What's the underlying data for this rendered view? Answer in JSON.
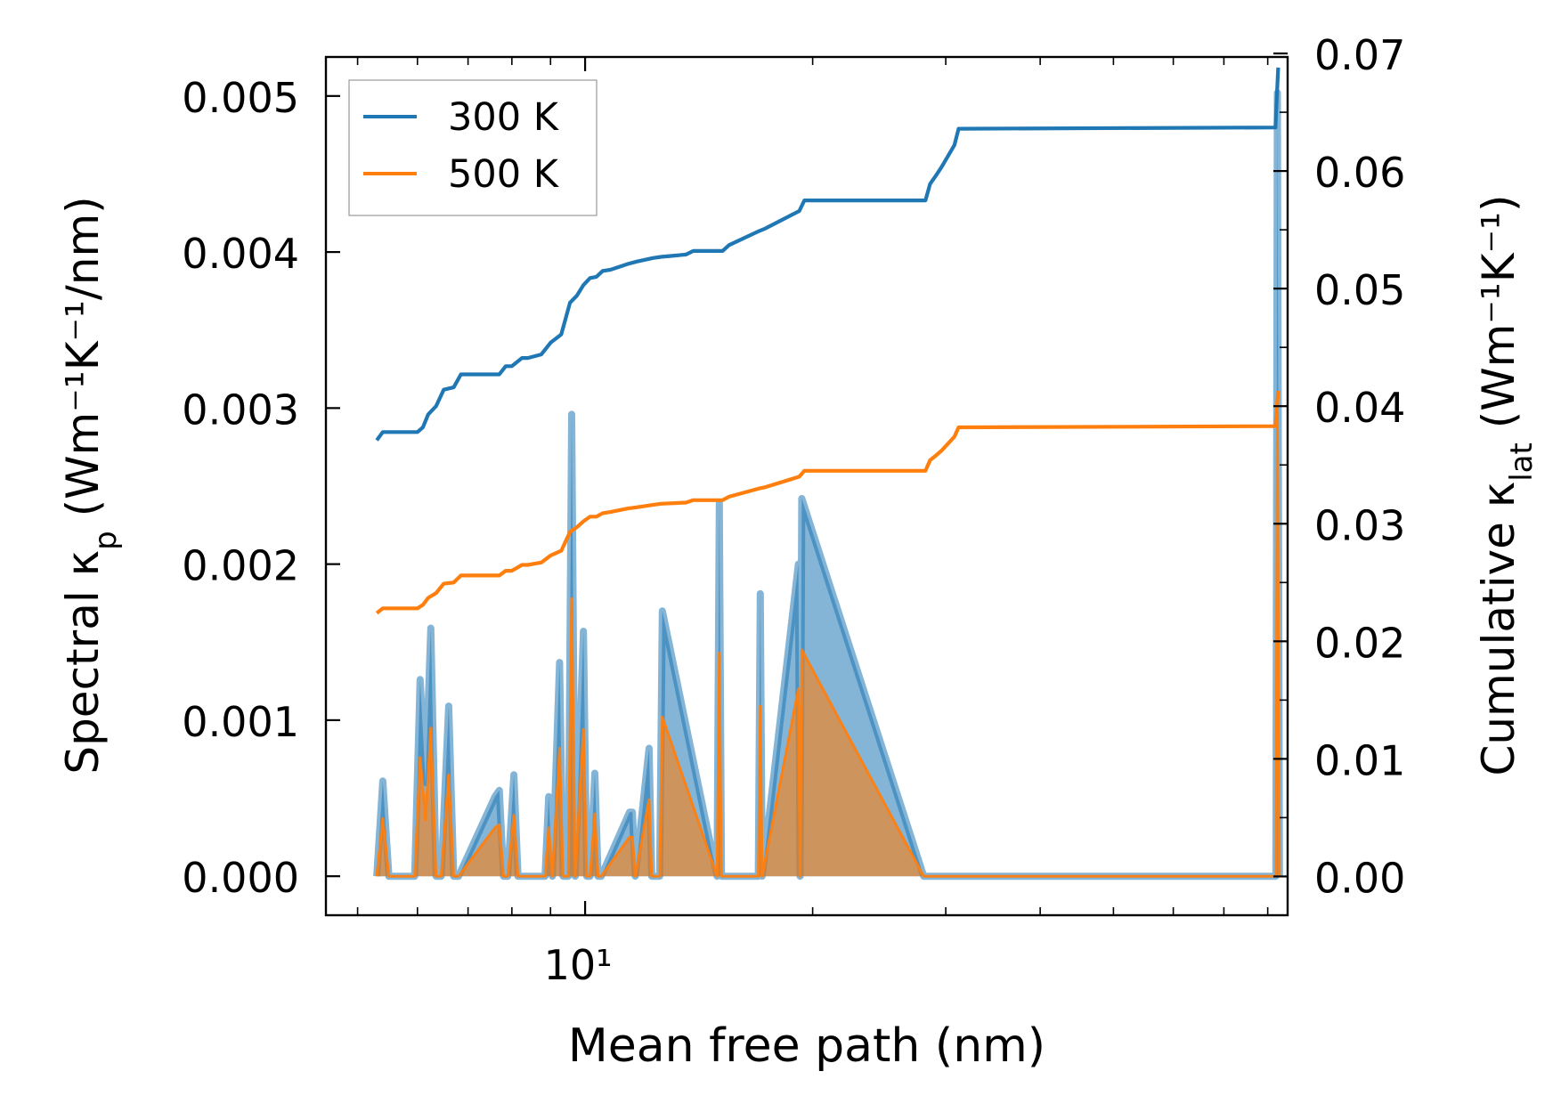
{
  "chart_data": {
    "type": "line",
    "xlabel": "Mean free path (nm)",
    "ylabel": "Spectral κ_p (Wm⁻¹K⁻¹/nm)",
    "ylabel_right": "Cumulative κ_lat (Wm⁻¹K⁻¹)",
    "xscale": "log",
    "xlim": [
      4.54,
      85
    ],
    "xticks": [
      {
        "value": 10,
        "label": "10¹"
      }
    ],
    "ylim": [
      -0.00025,
      0.00525
    ],
    "yticks": [
      0.0,
      0.001,
      0.002,
      0.003,
      0.004,
      0.005
    ],
    "ytick_labels": [
      "0.000",
      "0.001",
      "0.002",
      "0.003",
      "0.004",
      "0.005"
    ],
    "ylim_right": [
      -0.0033,
      0.0697
    ],
    "yticks_right": [
      0.0,
      0.01,
      0.02,
      0.03,
      0.04,
      0.05,
      0.06,
      0.07
    ],
    "ytick_labels_right": [
      "0.00",
      "0.01",
      "0.02",
      "0.03",
      "0.04",
      "0.05",
      "0.06",
      "0.07"
    ],
    "legend": {
      "position": "top-left",
      "entries": [
        {
          "label": "300 K",
          "color": "#1f77b4"
        },
        {
          "label": "500 K",
          "color": "#ff7f0e"
        }
      ]
    },
    "cumulative_x": [
      5.3,
      5.4,
      6.0,
      6.1,
      6.2,
      6.35,
      6.5,
      6.7,
      6.85,
      7.7,
      7.85,
      8.0,
      8.25,
      8.4,
      8.75,
      9.0,
      9.3,
      9.55,
      9.75,
      9.95,
      10.15,
      10.35,
      10.55,
      10.8,
      11.4,
      11.7,
      12.3,
      12.6,
      13.6,
      13.9,
      15.2,
      15.5,
      17.0,
      17.3,
      19.2,
      19.5,
      28.2,
      28.6,
      29.1,
      29.6,
      30.8,
      31.2,
      81.9,
      82.6
    ],
    "spectral_x": [
      5.3,
      5.4,
      5.5,
      5.95,
      6.05,
      6.15,
      6.25,
      6.35,
      6.45,
      6.6,
      6.7,
      6.8,
      7.6,
      7.7,
      7.8,
      7.9,
      8.05,
      8.15,
      8.25,
      8.85,
      8.95,
      9.05,
      9.25,
      9.35,
      9.5,
      9.6,
      9.7,
      9.95,
      10.05,
      10.15,
      10.3,
      10.4,
      10.5,
      11.45,
      11.55,
      11.65,
      12.15,
      12.25,
      12.55,
      12.65,
      14.95,
      15.05,
      15.15,
      16.95,
      17.05,
      17.15,
      19.15,
      19.25,
      19.35,
      28.05,
      28.25,
      28.45,
      28.65,
      28.85,
      29.05,
      30.5,
      30.75,
      31.0,
      81.5,
      82.0,
      82.4,
      82.9
    ],
    "series": [
      {
        "name": "300 K",
        "color": "#1f77b4",
        "cumulative": [
          0.0371,
          0.0378,
          0.0378,
          0.0382,
          0.0393,
          0.04,
          0.0414,
          0.0416,
          0.0427,
          0.0427,
          0.0434,
          0.0434,
          0.0441,
          0.0441,
          0.0444,
          0.0454,
          0.0461,
          0.0488,
          0.0494,
          0.0503,
          0.0509,
          0.051,
          0.0515,
          0.0516,
          0.0521,
          0.0523,
          0.0526,
          0.0527,
          0.0529,
          0.0532,
          0.0532,
          0.0537,
          0.0549,
          0.0551,
          0.0566,
          0.0575,
          0.0575,
          0.0589,
          0.0596,
          0.0603,
          0.0622,
          0.0636,
          0.0637,
          0.0688
        ],
        "spectral": [
          0,
          0.00061,
          0,
          0,
          0.00126,
          0.0006,
          0.00159,
          0,
          0,
          0.00109,
          0,
          0,
          0.00051,
          0.00055,
          0,
          0,
          0.00065,
          0,
          0,
          0,
          0.00051,
          0,
          0.00137,
          0,
          0,
          0.00296,
          0,
          0.00157,
          0,
          0,
          0.00066,
          0,
          0,
          0.00041,
          0.00041,
          0,
          0.00082,
          0,
          0,
          0.0017,
          0,
          0.00239,
          0,
          0,
          0.00181,
          0,
          0.002,
          0,
          0.00242,
          0,
          0,
          0,
          0,
          0,
          0,
          0,
          0,
          0,
          0,
          0,
          0.00502,
          0
        ]
      },
      {
        "name": "500 K",
        "color": "#ff7f0e",
        "cumulative": [
          0.0224,
          0.0228,
          0.0228,
          0.0231,
          0.0237,
          0.0241,
          0.0249,
          0.025,
          0.0256,
          0.0256,
          0.026,
          0.026,
          0.0265,
          0.0265,
          0.0267,
          0.0273,
          0.0277,
          0.0293,
          0.0297,
          0.0302,
          0.0306,
          0.0306,
          0.0309,
          0.031,
          0.0313,
          0.0314,
          0.0316,
          0.0317,
          0.0318,
          0.032,
          0.032,
          0.0323,
          0.033,
          0.0331,
          0.034,
          0.0345,
          0.0345,
          0.0354,
          0.0358,
          0.0362,
          0.0374,
          0.0382,
          0.0383,
          0.0413
        ],
        "spectral": [
          0,
          0.00037,
          0,
          0,
          0.00076,
          0.00036,
          0.00095,
          0,
          0,
          0.00065,
          0,
          0,
          0.00031,
          0.00033,
          0,
          0,
          0.00039,
          0,
          0,
          0,
          0.00031,
          0,
          0.00082,
          0,
          0,
          0.00178,
          0,
          0.00094,
          0,
          0,
          0.0004,
          0,
          0,
          0.00025,
          0.00025,
          0,
          0.00049,
          0,
          0,
          0.00102,
          0,
          0.00143,
          0,
          0,
          0.00109,
          0,
          0.0012,
          0,
          0.00145,
          0,
          0,
          0,
          0,
          0,
          0,
          0,
          0,
          0,
          0,
          0,
          0.00301,
          0
        ]
      }
    ]
  }
}
